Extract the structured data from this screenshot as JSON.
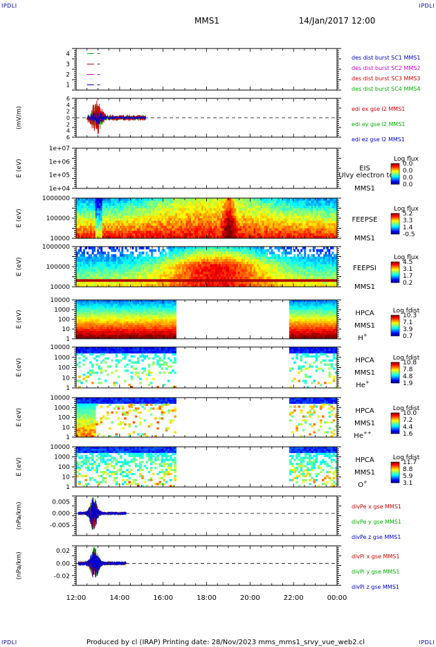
{
  "corner_labels": {
    "top_left": "IPDLI",
    "top_right": "IPDLI",
    "bottom_left": "IPDLI",
    "bottom_right": "IPDLI"
  },
  "header": {
    "spacecraft": "MMS1",
    "datetime": "14/Jan/2017 12:00"
  },
  "footer": "Produced by cl (IRAP)   Printing date: 28/Nov/2023   mms_mms1_srvy_vue_web2.cl",
  "time_axis": {
    "ticks": [
      "12:00",
      "14:00",
      "16:00",
      "18:00",
      "20:00",
      "22:00",
      "00:00"
    ]
  },
  "colors": {
    "cyan_data": "#00c000",
    "red": "#cc0000",
    "green": "#00b000",
    "blue": "#0000cc",
    "magenta": "#cc00cc"
  },
  "chart_data": [
    {
      "type": "line",
      "id": "dist",
      "ylim": [
        0.5,
        4.5
      ],
      "y_ticks": [
        "1",
        "2",
        "3",
        "4"
      ],
      "legend": [
        {
          "label": "des dist burst SC1 MMS1",
          "color": "#0000cc"
        },
        {
          "label": "des dist burst SC2 MMS2",
          "color": "#cc00cc"
        },
        {
          "label": "des dist burst SC3 MMS3",
          "color": "#cc0000"
        },
        {
          "label": "des dist burst SC4 MMS4",
          "color": "#00b000"
        }
      ],
      "series": [
        {
          "name": "des dist burst SC4 MMS4",
          "level": 4,
          "x_hours": [
            12.5,
            13.1
          ]
        },
        {
          "name": "des dist burst SC3 MMS3",
          "level": 3,
          "x_hours": [
            12.5,
            13.1
          ]
        },
        {
          "name": "des dist burst SC2 MMS2",
          "level": 2,
          "x_hours": [
            12.5,
            13.1
          ]
        },
        {
          "name": "des dist burst SC1 MMS1",
          "level": 1,
          "x_hours": [
            12.5,
            13.1
          ]
        }
      ]
    },
    {
      "type": "line",
      "id": "edi",
      "ylabel": "(mV/m)",
      "ylim": [
        -6,
        6
      ],
      "y_ticks": [
        "6",
        "4",
        "2",
        "0",
        "2",
        "4",
        "6"
      ],
      "legend": [
        {
          "label": "edi ex gse l2 MMS1",
          "color": "#cc0000"
        },
        {
          "label": "edi ey gse l2 MMS1",
          "color": "#00b000"
        },
        {
          "label": "edi ez gse l2 MMS1",
          "color": "#0000cc"
        }
      ],
      "x_range_hours": [
        12.5,
        15.2
      ]
    },
    {
      "type": "heatmap",
      "id": "eis",
      "ylabel": "E (eV)",
      "y_ticks": [
        "1e+07",
        "1e+06",
        "1e+05",
        "1e+04"
      ],
      "instrument": "EIS",
      "species": "Ulvy electron to",
      "spacecraft": "MMS1",
      "colorbar": {
        "title": "Log flux",
        "ticks": [
          "0.0",
          "0.0",
          "0.0",
          "0.0"
        ]
      }
    },
    {
      "type": "heatmap",
      "id": "feepse",
      "ylabel": "E (eV)",
      "y_ticks": [
        "1000000",
        "100000",
        "10000"
      ],
      "instrument": "FEEPSE",
      "spacecraft": "MMS1",
      "colorbar": {
        "title": "Log flux",
        "ticks": [
          "5.2",
          "3.3",
          "1.4",
          "-0.5"
        ]
      }
    },
    {
      "type": "heatmap",
      "id": "feepsi",
      "ylabel": "E (eV)",
      "y_ticks": [
        "1000000",
        "100000",
        "10000"
      ],
      "instrument": "FEEPSI",
      "spacecraft": "MMS1",
      "colorbar": {
        "title": "Log flux",
        "ticks": [
          "4.5",
          "3.1",
          "1.7",
          "0.2"
        ]
      }
    },
    {
      "type": "heatmap",
      "id": "hpca_h",
      "ylabel": "E (eV)",
      "y_ticks": [
        "10000",
        "1000",
        "100",
        "10",
        "1"
      ],
      "instrument": "HPCA",
      "spacecraft": "MMS1",
      "species": "H",
      "species_sup": "+",
      "colorbar": {
        "title": "Log fdist",
        "ticks": [
          "10.3",
          "7.1",
          "3.9",
          "0.7"
        ]
      },
      "data_spans_hours": [
        [
          12.0,
          16.6
        ],
        [
          21.8,
          24.0
        ]
      ]
    },
    {
      "type": "heatmap",
      "id": "hpca_he",
      "ylabel": "E (eV)",
      "y_ticks": [
        "10000",
        "1000",
        "100",
        "10",
        "1"
      ],
      "instrument": "HPCA",
      "spacecraft": "MMS1",
      "species": "He",
      "species_sup": "+",
      "colorbar": {
        "title": "Log fdist",
        "ticks": [
          "10.8",
          "7.8",
          "4.8",
          "1.9"
        ]
      },
      "data_spans_hours": [
        [
          12.0,
          16.6
        ],
        [
          21.8,
          24.0
        ]
      ]
    },
    {
      "type": "heatmap",
      "id": "hpca_hepp",
      "ylabel": "E (eV)",
      "y_ticks": [
        "10000",
        "1000",
        "100",
        "10",
        "1"
      ],
      "instrument": "HPCA",
      "spacecraft": "MMS1",
      "species": "He",
      "species_sup": "++",
      "colorbar": {
        "title": "Log fdist",
        "ticks": [
          "10.0",
          "7.2",
          "4.4",
          "1.6"
        ]
      },
      "data_spans_hours": [
        [
          12.0,
          16.6
        ],
        [
          21.8,
          24.0
        ]
      ]
    },
    {
      "type": "heatmap",
      "id": "hpca_o",
      "ylabel": "E (eV)",
      "y_ticks": [
        "10000",
        "1000",
        "100",
        "10",
        "1"
      ],
      "instrument": "HPCA",
      "spacecraft": "MMS1",
      "species": "O",
      "species_sup": "+",
      "colorbar": {
        "title": "Log fdist",
        "ticks": [
          "11.7",
          "8.8",
          "5.9",
          "3.1"
        ]
      },
      "data_spans_hours": [
        [
          12.0,
          16.6
        ],
        [
          21.8,
          24.0
        ]
      ]
    },
    {
      "type": "line",
      "id": "divpe",
      "ylabel": "(nPa/km)",
      "ylim": [
        -0.0095,
        0.0075
      ],
      "y_ticks": [
        "0.005",
        "0.000",
        "-0.005"
      ],
      "legend": [
        {
          "label": "divPe x gse MMS1",
          "color": "#cc0000"
        },
        {
          "label": "divPe y gse MMS1",
          "color": "#00b000"
        },
        {
          "label": "divPe z gse MMS1",
          "color": "#0000cc"
        }
      ],
      "x_range_hours": [
        12.1,
        14.3
      ]
    },
    {
      "type": "line",
      "id": "divpi",
      "ylabel": "(nPa/km)",
      "ylim": [
        -0.035,
        0.028
      ],
      "y_ticks": [
        "0.02",
        "0.00",
        "-0.02"
      ],
      "legend": [
        {
          "label": "divPi x gse MMS1",
          "color": "#cc0000"
        },
        {
          "label": "divPi y gse MMS1",
          "color": "#00b000"
        },
        {
          "label": "divPi z gse MMS1",
          "color": "#0000cc"
        }
      ],
      "x_range_hours": [
        12.1,
        14.3
      ]
    }
  ]
}
